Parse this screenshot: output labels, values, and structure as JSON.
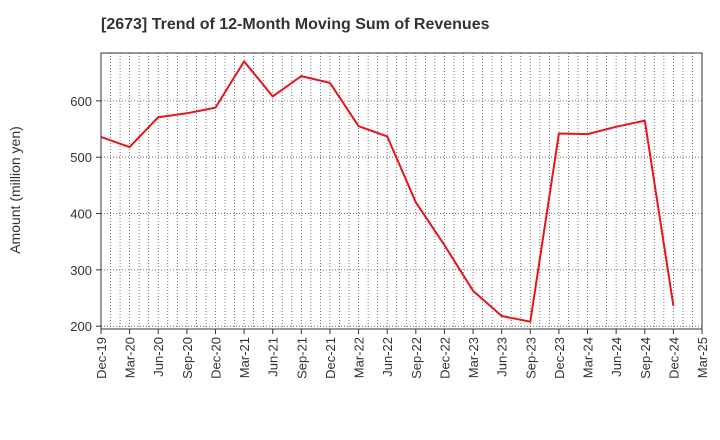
{
  "chart_data": {
    "type": "line",
    "title": "[2673]  Trend of 12-Month Moving Sum of Revenues",
    "xlabel": "",
    "ylabel": "Amount (million yen)",
    "categories": [
      "Dec-19",
      "Mar-20",
      "Jun-20",
      "Sep-20",
      "Dec-20",
      "Mar-21",
      "Jun-21",
      "Sep-21",
      "Dec-21",
      "Mar-22",
      "Jun-22",
      "Sep-22",
      "Dec-22",
      "Mar-23",
      "Jun-23",
      "Sep-23",
      "Dec-23",
      "Mar-24",
      "Jun-24",
      "Sep-24",
      "Dec-24",
      "Mar-25"
    ],
    "series": [
      {
        "color": "#e8141b",
        "values": [
          536,
          518,
          571,
          578,
          588,
          670,
          608,
          644,
          632,
          555,
          537,
          420,
          344,
          263,
          218,
          208,
          542,
          541,
          554,
          565,
          236,
          null
        ]
      }
    ],
    "yticks": [
      200,
      300,
      400,
      500,
      600
    ],
    "ylim": [
      195,
      685
    ],
    "grid": true,
    "legend": "none"
  }
}
